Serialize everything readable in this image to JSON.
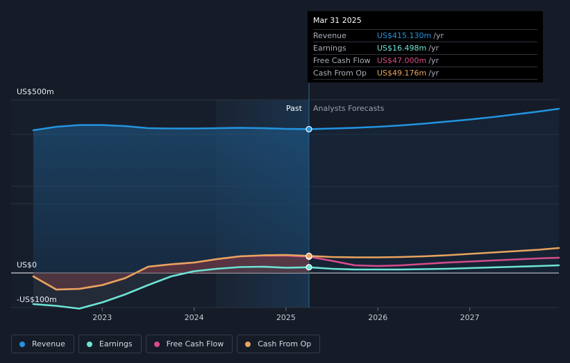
{
  "tooltip": {
    "date": "Mar 31 2025",
    "rows": [
      {
        "label": "Revenue",
        "value": "US$415.130m",
        "unit": "/yr",
        "color": "#2394df"
      },
      {
        "label": "Earnings",
        "value": "US$16.498m",
        "unit": "/yr",
        "color": "#6ce5d6"
      },
      {
        "label": "Free Cash Flow",
        "value": "US$47.000m",
        "unit": "/yr",
        "color": "#d64c8a"
      },
      {
        "label": "Cash From Op",
        "value": "US$49.176m",
        "unit": "/yr",
        "color": "#e8a45d"
      }
    ]
  },
  "y_axis_labels": {
    "top": "US$500m",
    "zero": "US$0",
    "bottom": "-US$100m"
  },
  "divider_labels": {
    "past": "Past",
    "forecast": "Analysts Forecasts"
  },
  "legend": [
    {
      "label": "Revenue",
      "color": "#2394df"
    },
    {
      "label": "Earnings",
      "color": "#6ce5d6"
    },
    {
      "label": "Free Cash Flow",
      "color": "#d64c8a"
    },
    {
      "label": "Cash From Op",
      "color": "#e8a45d"
    }
  ],
  "chart_data": {
    "type": "line",
    "unit": "US$m",
    "ylim": [
      -100,
      500
    ],
    "xlim": [
      2022.25,
      2027.97
    ],
    "x_ticks": [
      "2023",
      "2024",
      "2025",
      "2026",
      "2027"
    ],
    "past_forecast_split": 2025.25,
    "series": [
      {
        "name": "Revenue",
        "color": "#2394df",
        "points": [
          [
            2022.25,
            412
          ],
          [
            2022.5,
            422
          ],
          [
            2022.75,
            427
          ],
          [
            2023.0,
            427
          ],
          [
            2023.25,
            424
          ],
          [
            2023.5,
            418
          ],
          [
            2023.75,
            417
          ],
          [
            2024.0,
            417
          ],
          [
            2024.25,
            418
          ],
          [
            2024.5,
            419
          ],
          [
            2024.75,
            418
          ],
          [
            2025.0,
            416
          ],
          [
            2025.25,
            415.13
          ],
          [
            2025.5,
            417
          ],
          [
            2025.75,
            419
          ],
          [
            2026.0,
            422
          ],
          [
            2026.25,
            426
          ],
          [
            2026.5,
            431
          ],
          [
            2026.75,
            437
          ],
          [
            2027.0,
            443
          ],
          [
            2027.25,
            450
          ],
          [
            2027.5,
            458
          ],
          [
            2027.75,
            466
          ],
          [
            2027.97,
            474
          ]
        ]
      },
      {
        "name": "Earnings",
        "color": "#6ce5d6",
        "points": [
          [
            2022.25,
            -90
          ],
          [
            2022.5,
            -95
          ],
          [
            2022.75,
            -103
          ],
          [
            2023.0,
            -85
          ],
          [
            2023.25,
            -62
          ],
          [
            2023.5,
            -35
          ],
          [
            2023.75,
            -10
          ],
          [
            2024.0,
            5
          ],
          [
            2024.25,
            12
          ],
          [
            2024.5,
            17
          ],
          [
            2024.75,
            18
          ],
          [
            2025.0,
            15
          ],
          [
            2025.25,
            16.5
          ],
          [
            2025.5,
            12
          ],
          [
            2025.75,
            10
          ],
          [
            2026.0,
            10
          ],
          [
            2026.25,
            10
          ],
          [
            2026.5,
            11
          ],
          [
            2026.75,
            12
          ],
          [
            2027.0,
            14
          ],
          [
            2027.25,
            16
          ],
          [
            2027.5,
            18
          ],
          [
            2027.75,
            20
          ],
          [
            2027.97,
            22
          ]
        ]
      },
      {
        "name": "Free Cash Flow",
        "color": "#d64c8a",
        "points": [
          [
            2022.25,
            -10
          ],
          [
            2022.5,
            -48
          ],
          [
            2022.75,
            -46
          ],
          [
            2023.0,
            -35
          ],
          [
            2023.25,
            -15
          ],
          [
            2023.5,
            18
          ],
          [
            2023.75,
            25
          ],
          [
            2024.0,
            30
          ],
          [
            2024.25,
            40
          ],
          [
            2024.5,
            48
          ],
          [
            2024.75,
            50
          ],
          [
            2025.0,
            50
          ],
          [
            2025.25,
            47
          ],
          [
            2025.5,
            35
          ],
          [
            2025.75,
            22
          ],
          [
            2026.0,
            20
          ],
          [
            2026.25,
            22
          ],
          [
            2026.5,
            26
          ],
          [
            2026.75,
            30
          ],
          [
            2027.0,
            33
          ],
          [
            2027.25,
            36
          ],
          [
            2027.5,
            39
          ],
          [
            2027.75,
            42
          ],
          [
            2027.97,
            44
          ]
        ]
      },
      {
        "name": "Cash From Op",
        "color": "#e8a45d",
        "points": [
          [
            2022.25,
            -10
          ],
          [
            2022.5,
            -48
          ],
          [
            2022.75,
            -46
          ],
          [
            2023.0,
            -35
          ],
          [
            2023.25,
            -15
          ],
          [
            2023.5,
            18
          ],
          [
            2023.75,
            25
          ],
          [
            2024.0,
            30
          ],
          [
            2024.25,
            40
          ],
          [
            2024.5,
            48
          ],
          [
            2024.75,
            51
          ],
          [
            2025.0,
            52
          ],
          [
            2025.25,
            49.18
          ],
          [
            2025.5,
            46
          ],
          [
            2025.75,
            45
          ],
          [
            2026.0,
            45
          ],
          [
            2026.25,
            46
          ],
          [
            2026.5,
            48
          ],
          [
            2026.75,
            51
          ],
          [
            2027.0,
            55
          ],
          [
            2027.25,
            59
          ],
          [
            2027.5,
            63
          ],
          [
            2027.75,
            67
          ],
          [
            2027.97,
            72
          ]
        ]
      }
    ],
    "highlighted_x": 2025.25
  }
}
